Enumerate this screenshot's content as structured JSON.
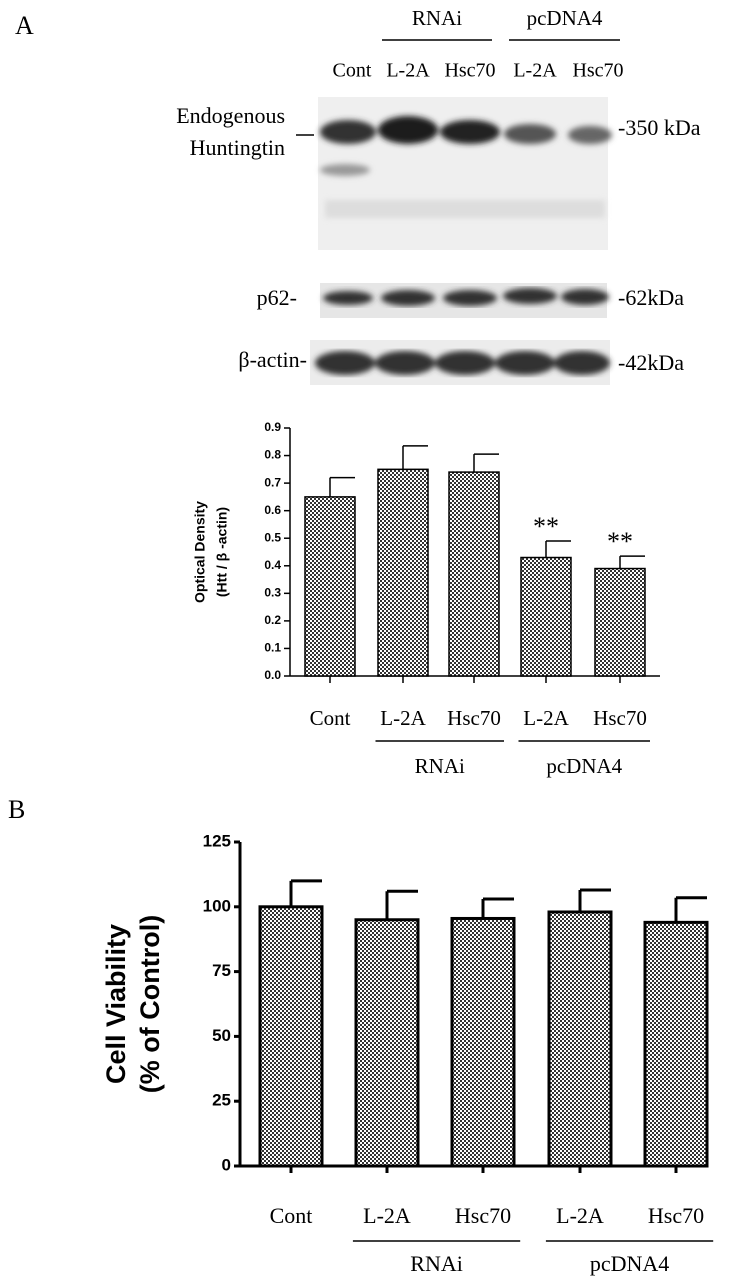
{
  "panels": [
    "A",
    "B"
  ],
  "blot": {
    "lanes": [
      "Cont",
      "L-2A",
      "Hsc70",
      "L-2A",
      "Hsc70"
    ],
    "lane_groups": [
      null,
      "RNAi",
      "RNAi",
      "pcDNA4",
      "pcDNA4"
    ],
    "rows": [
      {
        "label": [
          "Endogenous",
          "Huntingtin"
        ],
        "marker": "-350 kDa"
      },
      {
        "label": [
          "p62-"
        ],
        "marker": "-62kDa"
      },
      {
        "label": [
          "β-actin-"
        ],
        "marker": "-42kDa"
      }
    ]
  },
  "chart_data": [
    {
      "type": "bar",
      "ylabel": [
        "Optical Density",
        "(Htt / β -actin)"
      ],
      "categories": [
        "Cont",
        "L-2A",
        "Hsc70",
        "L-2A",
        "Hsc70"
      ],
      "groups": [
        null,
        "RNAi",
        "RNAi",
        "pcDNA4",
        "pcDNA4"
      ],
      "values": [
        0.65,
        0.75,
        0.74,
        0.43,
        0.39
      ],
      "errors": [
        0.07,
        0.085,
        0.065,
        0.06,
        0.045
      ],
      "significance": [
        null,
        null,
        null,
        "**",
        "**"
      ],
      "ylim": [
        0,
        0.9
      ],
      "yticks": [
        {
          "value": 0,
          "label": "0.0"
        },
        0.1,
        0.2,
        0.3,
        0.4,
        0.5,
        0.6,
        0.7,
        0.8,
        0.9
      ]
    },
    {
      "type": "bar",
      "ylabel": [
        "Cell Viability",
        "(% of Control)"
      ],
      "categories": [
        "Cont",
        "L-2A",
        "Hsc70",
        "L-2A",
        "Hsc70"
      ],
      "groups": [
        null,
        "RNAi",
        "RNAi",
        "pcDNA4",
        "pcDNA4"
      ],
      "values": [
        100,
        95,
        95.5,
        98,
        94
      ],
      "errors": [
        10,
        11,
        7.5,
        8.5,
        9.5
      ],
      "ylim": [
        0,
        125
      ],
      "yticks": [
        0,
        25,
        50,
        75,
        100,
        125
      ]
    }
  ]
}
